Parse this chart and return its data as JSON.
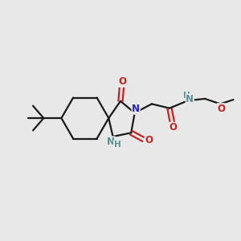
{
  "bg_color": "#e8e8e8",
  "bond_color": "#1a1a1a",
  "N_color": "#2020cc",
  "O_color": "#cc2020",
  "NH_color": "#5a9090",
  "line_width": 1.6,
  "font_size": 8.5,
  "fig_size": [
    3.0,
    3.0
  ],
  "dpi": 100,
  "xlim": [
    0,
    10
  ],
  "ylim": [
    0,
    10
  ]
}
